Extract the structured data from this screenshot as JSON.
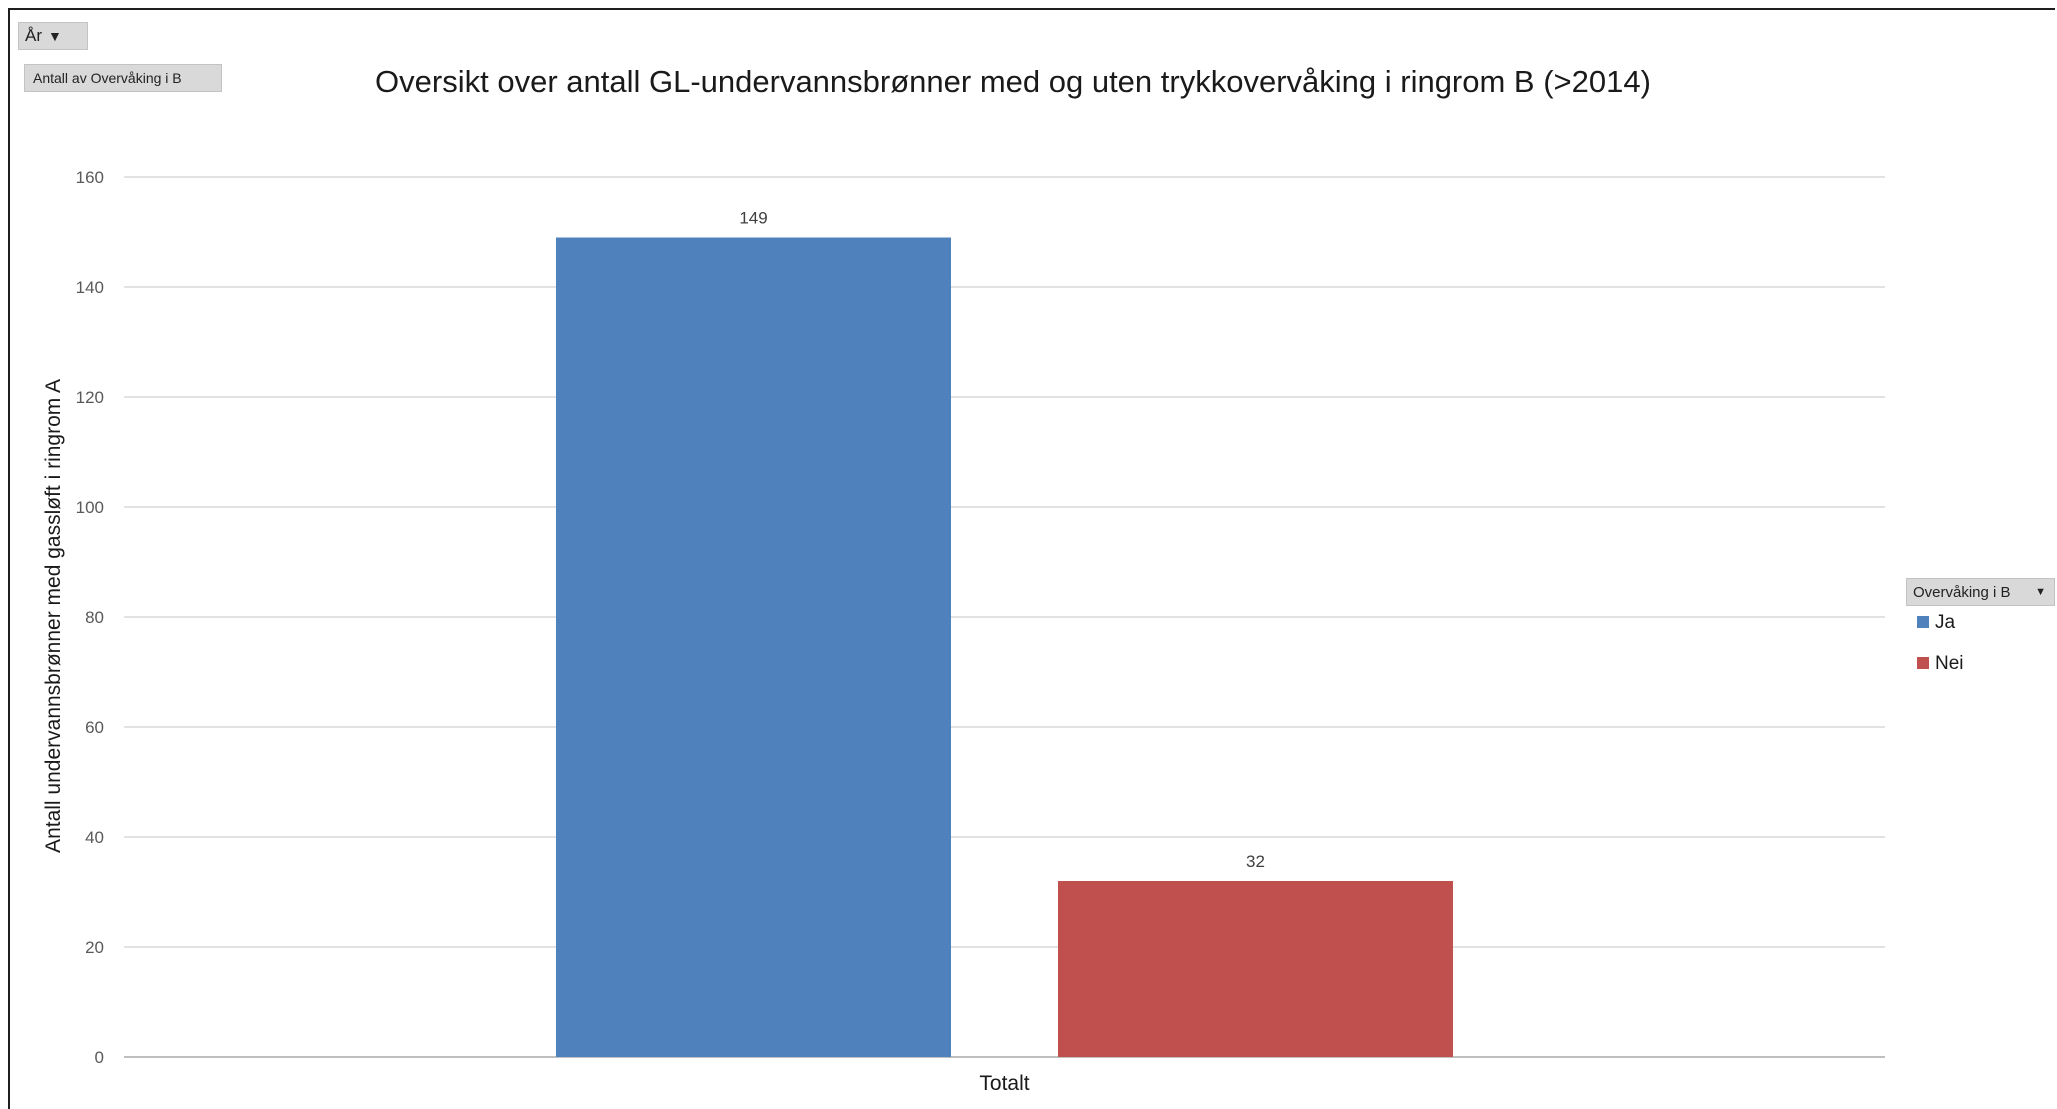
{
  "pivot": {
    "filter_label": "År",
    "filter_icon": "funnel-filter-icon",
    "value_field_label": "Antall av Overvåking i B",
    "legend_field_label": "Overvåking i B",
    "legend_field_icon": "dropdown-arrow-icon"
  },
  "chart_data": {
    "type": "bar",
    "title": "Oversikt over antall GL-undervannsbrønner  med og uten trykkovervåking i ringrom B (>2014)",
    "xlabel": "",
    "ylabel": "Antall undervannsbrønner med gassløft i ringrom A",
    "categories": [
      "Totalt"
    ],
    "series": [
      {
        "name": "Ja",
        "values": [
          149
        ],
        "color": "#4f81bd"
      },
      {
        "name": "Nei",
        "values": [
          32
        ],
        "color": "#c0504d"
      }
    ],
    "ylim": [
      0,
      160
    ],
    "yticks": [
      "0",
      "20",
      "40",
      "60",
      "80",
      "100",
      "120",
      "140",
      "160"
    ],
    "data_labels": [
      "149",
      "32"
    ],
    "grid": true,
    "legend": "right"
  }
}
